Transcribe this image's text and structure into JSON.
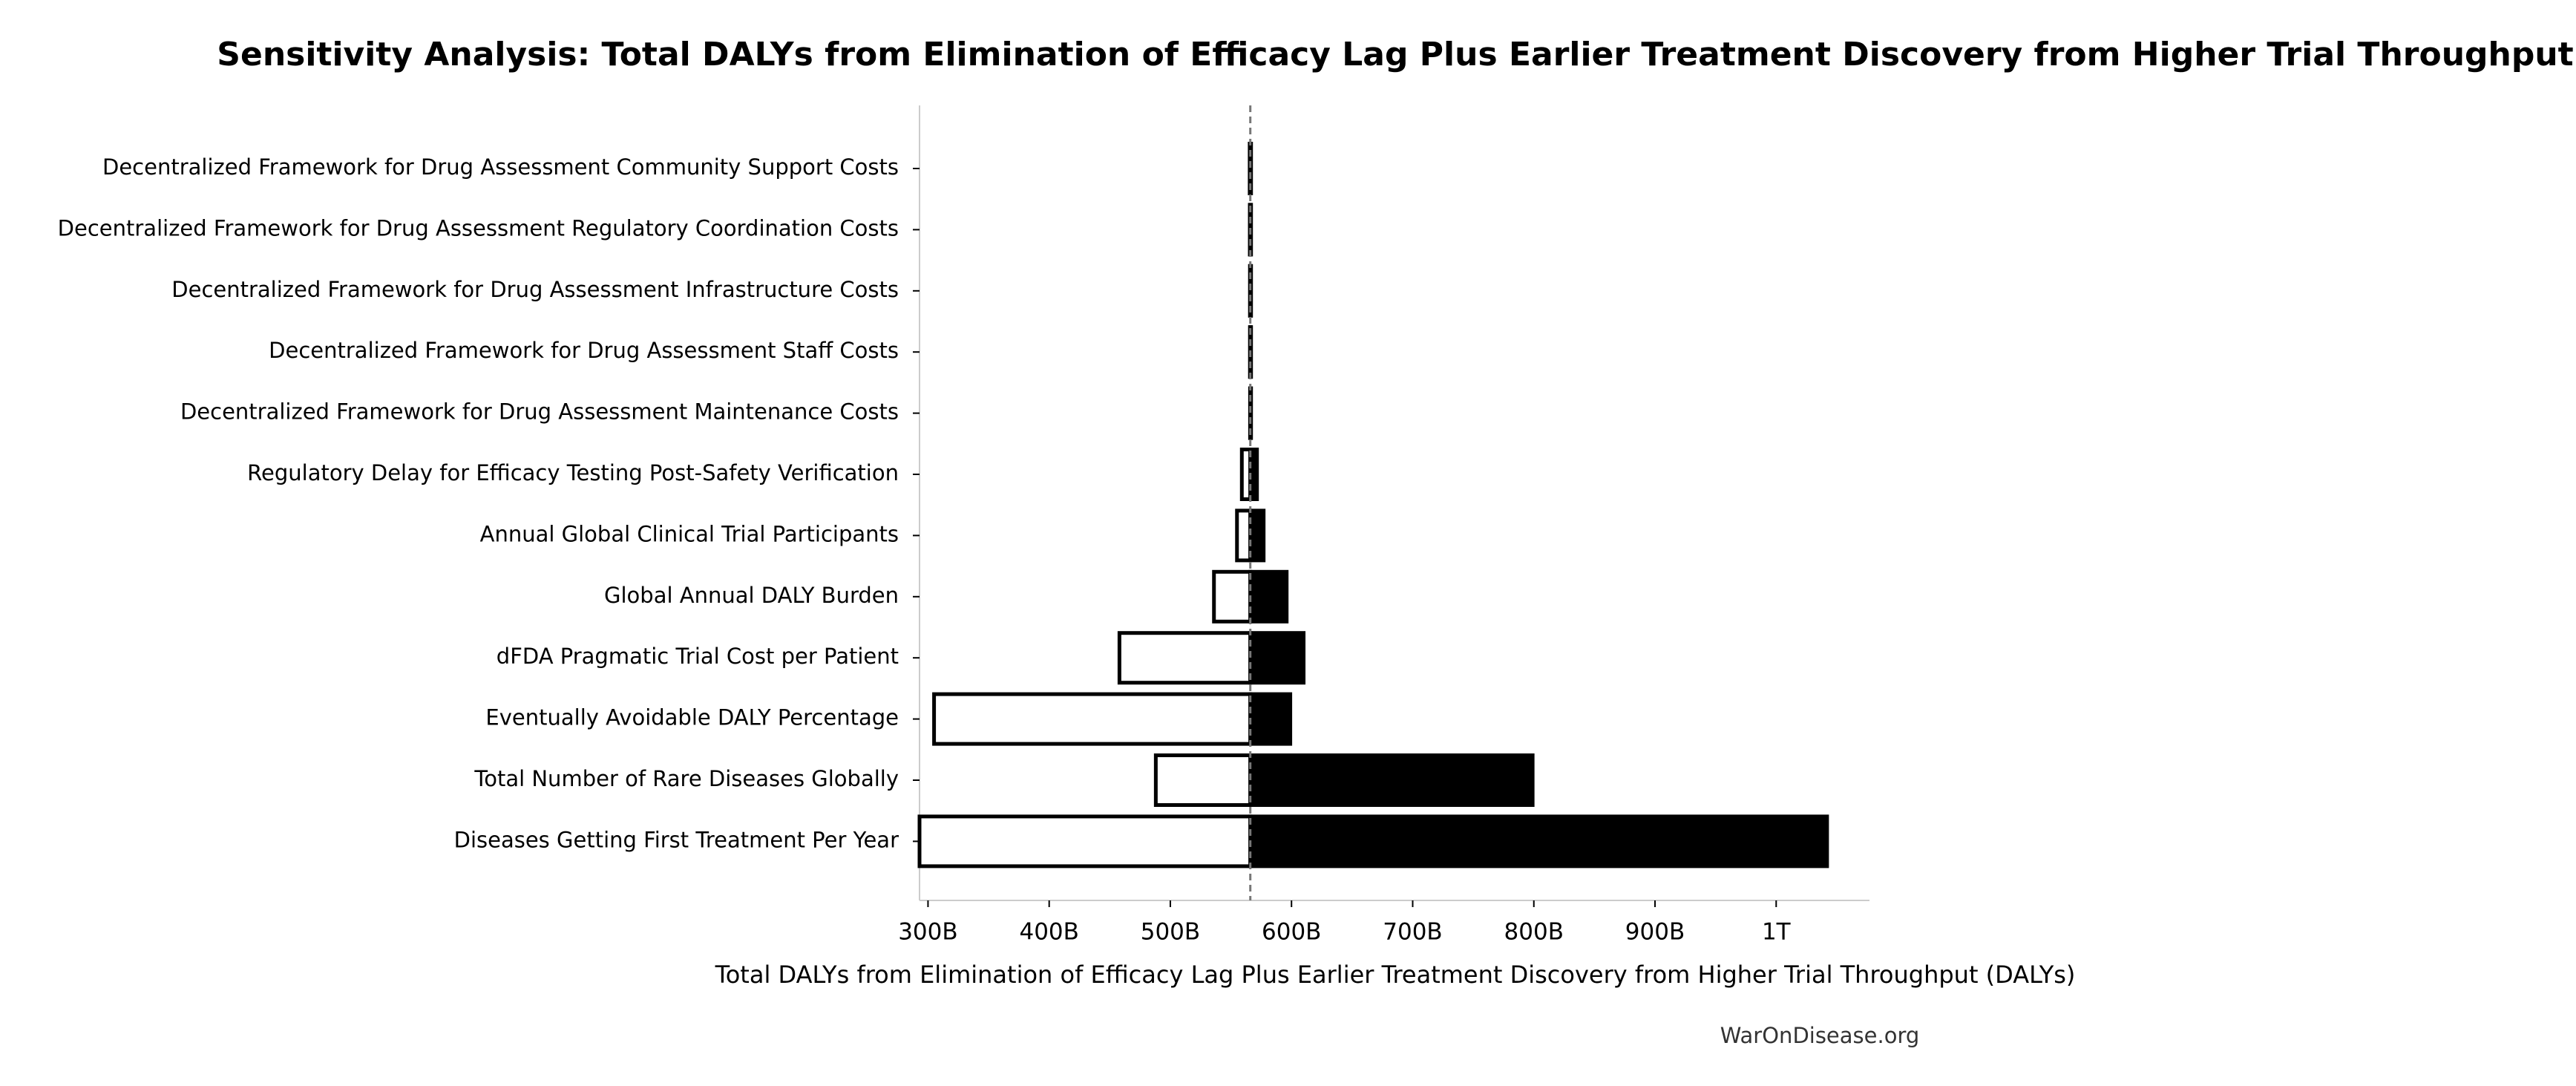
{
  "chart_data": {
    "type": "tornado",
    "title": "Sensitivity Analysis: Total DALYs from Elimination of Efficacy Lag Plus Earlier Treatment Discovery from Higher Trial Throughput",
    "xlabel": "Total DALYs from Elimination of Efficacy Lag Plus Earlier Treatment Discovery from Higher Trial Throughput (DALYs)",
    "footer": "WarOnDisease.org",
    "categories": [
      "Decentralized Framework for Drug Assessment Community Support Costs",
      "Decentralized Framework for Drug Assessment Regulatory Coordination Costs",
      "Decentralized Framework for Drug Assessment Infrastructure Costs",
      "Decentralized Framework for Drug Assessment Staff Costs",
      "Decentralized Framework for Drug Assessment Maintenance Costs",
      "Regulatory Delay for Efficacy Testing Post-Safety Verification",
      "Annual Global Clinical Trial Participants",
      "Global Annual DALY Burden",
      "dFDA Pragmatic Trial Cost per Patient",
      "Eventually Avoidable DALY Percentage",
      "Total Number of Rare Diseases Globally",
      "Diseases Getting First Treatment Per Year"
    ],
    "baseline": 566000000000,
    "series": [
      {
        "color": "#ffffff",
        "values": [
          565500000000,
          565600000000,
          565700000000,
          565700000000,
          565800000000,
          559000000000,
          555000000000,
          536000000000,
          458000000000,
          305000000000,
          488000000000,
          293000000000
        ]
      },
      {
        "color": "#000000",
        "values": [
          566500000000,
          566400000000,
          566300000000,
          566300000000,
          566200000000,
          571500000000,
          577000000000,
          596000000000,
          610000000000,
          599000000000,
          799000000000,
          1042000000000
        ]
      }
    ],
    "xlim": [
      293000000000,
      1077000000000
    ],
    "xticks": [
      {
        "value": 300000000000,
        "label": "300B"
      },
      {
        "value": 400000000000,
        "label": "400B"
      },
      {
        "value": 500000000000,
        "label": "500B"
      },
      {
        "value": 600000000000,
        "label": "600B"
      },
      {
        "value": 700000000000,
        "label": "700B"
      },
      {
        "value": 800000000000,
        "label": "800B"
      },
      {
        "value": 900000000000,
        "label": "900B"
      },
      {
        "value": 1000000000000,
        "label": "1T"
      }
    ]
  }
}
